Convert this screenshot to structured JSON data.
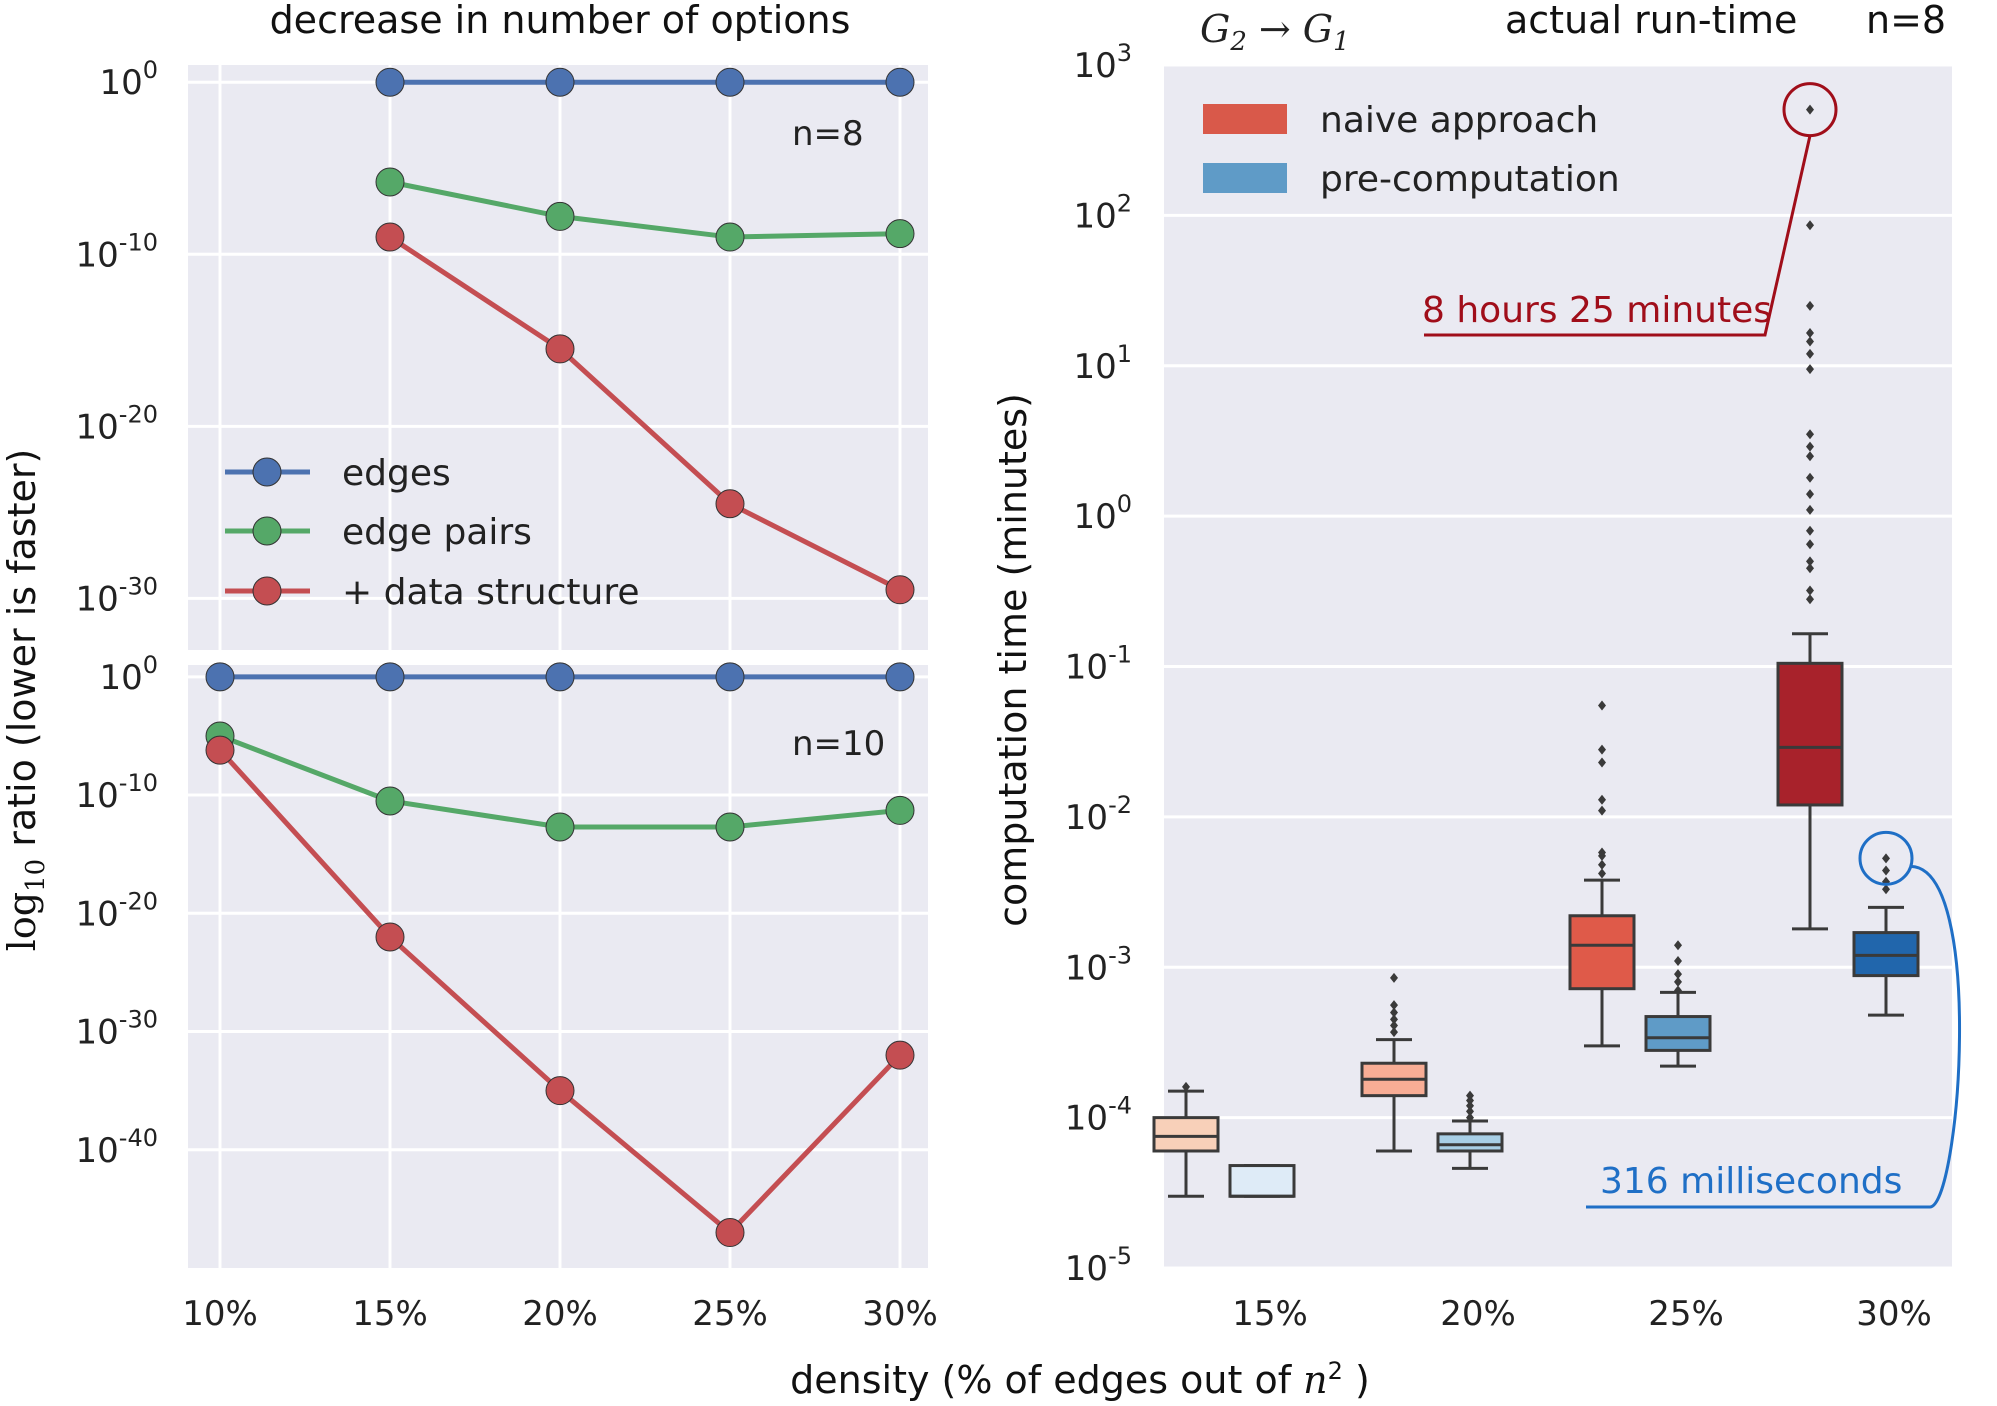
{
  "figure": {
    "xlabel": "density (% of edges out of ",
    "xlabel_math": "n",
    "xlabel_sup": "2",
    "xlabel_close": " )",
    "ylabel_left_prefix": "log",
    "ylabel_left_sub": "10",
    "ylabel_left_rest": " ratio (lower is faster)"
  },
  "chart_data": [
    {
      "id": "options_n8",
      "type": "line",
      "title": "decrease in number of options",
      "annotation": "n=8",
      "y_scale": "log10",
      "categories": [
        "10%",
        "15%",
        "20%",
        "25%",
        "30%"
      ],
      "ylim_exp": [
        -33,
        1
      ],
      "ytick_exp": [
        0,
        -10,
        -20,
        -30
      ],
      "ytick_labels": [
        {
          "base": "10",
          "exp": "0"
        },
        {
          "base": "10",
          "exp": "-10"
        },
        {
          "base": "10",
          "exp": "-20"
        },
        {
          "base": "10",
          "exp": "-30"
        }
      ],
      "series": [
        {
          "name": "edges",
          "color": "#4c72b0",
          "x": [
            "15%",
            "20%",
            "25%",
            "30%"
          ],
          "log10_values": [
            0,
            0,
            0,
            0
          ]
        },
        {
          "name": "edge pairs",
          "color": "#55a868",
          "x": [
            "15%",
            "20%",
            "25%",
            "30%"
          ],
          "log10_values": [
            -5.8,
            -7.8,
            -9,
            -8.8
          ]
        },
        {
          "name": "+ data structure",
          "color": "#c44e52",
          "x": [
            "15%",
            "20%",
            "25%",
            "30%"
          ],
          "log10_values": [
            -9,
            -15.5,
            -24.5,
            -29.5
          ]
        }
      ],
      "legend": {
        "placement": "lower-left"
      }
    },
    {
      "id": "options_n10",
      "type": "line",
      "annotation": "n=10",
      "y_scale": "log10",
      "categories": [
        "10%",
        "15%",
        "20%",
        "25%",
        "30%"
      ],
      "xtick_labels": [
        "10%",
        "15%",
        "20%",
        "25%",
        "30%"
      ],
      "ylim_exp": [
        -50,
        1
      ],
      "ytick_exp": [
        0,
        -10,
        -20,
        -30,
        -40
      ],
      "ytick_labels": [
        {
          "base": "10",
          "exp": "0"
        },
        {
          "base": "10",
          "exp": "-10"
        },
        {
          "base": "10",
          "exp": "-20"
        },
        {
          "base": "10",
          "exp": "-30"
        },
        {
          "base": "10",
          "exp": "-40"
        }
      ],
      "series": [
        {
          "name": "edges",
          "color": "#4c72b0",
          "x": [
            "10%",
            "15%",
            "20%",
            "25%",
            "30%"
          ],
          "log10_values": [
            0,
            0,
            0,
            0,
            0
          ]
        },
        {
          "name": "edge pairs",
          "color": "#55a868",
          "x": [
            "10%",
            "15%",
            "20%",
            "25%",
            "30%"
          ],
          "log10_values": [
            -5,
            -10.5,
            -12.7,
            -12.7,
            -11.3
          ]
        },
        {
          "name": "+ data structure",
          "color": "#c44e52",
          "x": [
            "10%",
            "15%",
            "20%",
            "25%",
            "30%"
          ],
          "log10_values": [
            -6.2,
            -22,
            -35,
            -47,
            -32
          ]
        }
      ]
    },
    {
      "id": "runtime_n8",
      "type": "box",
      "title_math": "G",
      "title_math_sub1": "2",
      "title_math_arrow": "→",
      "title_math_sub2": "1",
      "title": "actual run-time",
      "title_suffix": "n=8",
      "ylabel": "computation time (minutes)",
      "y_scale": "log10",
      "ylim_exp": [
        -5,
        3
      ],
      "ytick_exp": [
        3,
        2,
        1,
        0,
        -1,
        -2,
        -3,
        -4,
        -5
      ],
      "ytick_labels": [
        {
          "base": "10",
          "exp": "3"
        },
        {
          "base": "10",
          "exp": "2"
        },
        {
          "base": "10",
          "exp": "1"
        },
        {
          "base": "10",
          "exp": "0"
        },
        {
          "base": "10",
          "exp": "-1"
        },
        {
          "base": "10",
          "exp": "-2"
        },
        {
          "base": "10",
          "exp": "-3"
        },
        {
          "base": "10",
          "exp": "-4"
        },
        {
          "base": "10",
          "exp": "-5"
        }
      ],
      "categories": [
        "15%",
        "20%",
        "25%",
        "30%"
      ],
      "legend": {
        "placement": "top-left",
        "entries": [
          {
            "name": "naive approach",
            "color": "#d9594a"
          },
          {
            "name": "pre-computation",
            "color": "#5f9bc7"
          }
        ]
      },
      "boxes": [
        {
          "category": "15%",
          "series": "naive approach",
          "color": "#f8d0b9",
          "whislo": 3e-05,
          "q1": 6e-05,
          "med": 7.5e-05,
          "q3": 0.0001,
          "whishi": 0.00015,
          "fliers": [
            0.00016
          ]
        },
        {
          "category": "15%",
          "series": "pre-computation",
          "color": "#deebf7",
          "whislo": 3e-05,
          "q1": 3e-05,
          "med": 3e-05,
          "q3": 4.8e-05,
          "whishi": 4.8e-05,
          "fliers": []
        },
        {
          "category": "20%",
          "series": "naive approach",
          "color": "#f8ad95",
          "whislo": 6e-05,
          "q1": 0.00014,
          "med": 0.00018,
          "q3": 0.00023,
          "whishi": 0.00033,
          "fliers": [
            0.00037,
            0.00041,
            0.00045,
            0.0005,
            0.00056,
            0.00085
          ]
        },
        {
          "category": "20%",
          "series": "pre-computation",
          "color": "#a8cfe6",
          "whislo": 4.6e-05,
          "q1": 6e-05,
          "med": 6.6e-05,
          "q3": 7.8e-05,
          "whishi": 9.5e-05,
          "fliers": [
            0.0001,
            0.00011,
            0.00012,
            0.00013,
            0.00014
          ]
        },
        {
          "category": "25%",
          "series": "naive approach",
          "color": "#df5a49",
          "whislo": 0.0003,
          "q1": 0.00072,
          "med": 0.0014,
          "q3": 0.0022,
          "whishi": 0.0038,
          "fliers": [
            0.0042,
            0.0048,
            0.0055,
            0.0058,
            0.011,
            0.013,
            0.023,
            0.028,
            0.055
          ]
        },
        {
          "category": "25%",
          "series": "pre-computation",
          "color": "#5f9bc7",
          "whislo": 0.00022,
          "q1": 0.00028,
          "med": 0.00034,
          "q3": 0.00047,
          "whishi": 0.00068,
          "fliers": [
            0.0007,
            0.0008,
            0.0009,
            0.0011,
            0.0014
          ]
        },
        {
          "category": "30%",
          "series": "naive approach",
          "color": "#a8222b",
          "whislo": 0.0018,
          "q1": 0.012,
          "med": 0.029,
          "q3": 0.105,
          "whishi": 0.165,
          "fliers": [
            0.28,
            0.32,
            0.45,
            0.5,
            0.65,
            0.8,
            1.1,
            1.4,
            1.8,
            2.5,
            2.9,
            3.5,
            9.5,
            12,
            14.5,
            16.5,
            25,
            86,
            505
          ]
        },
        {
          "category": "30%",
          "series": "pre-computation",
          "color": "#2166ac",
          "whislo": 0.00048,
          "q1": 0.00088,
          "med": 0.0012,
          "q3": 0.0017,
          "whishi": 0.0025,
          "fliers": [
            0.0033,
            0.0037,
            0.0044,
            0.0053
          ]
        }
      ],
      "annotations": [
        {
          "text": "8 hours 25 minutes",
          "color": "#a00e1a",
          "target_category": "30%",
          "target_series": "naive approach",
          "target_value": 505
        },
        {
          "text": "316 milliseconds",
          "color": "#1f6fc6",
          "target_category": "30%",
          "target_series": "pre-computation",
          "target_value": 0.0053
        }
      ]
    }
  ]
}
